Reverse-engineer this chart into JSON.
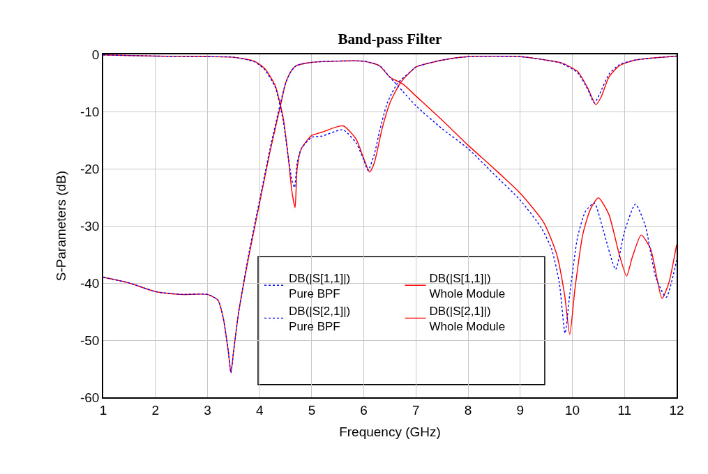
{
  "chart_data": {
    "type": "line",
    "title": "Band-pass Filter",
    "xlabel": "Frequency (GHz)",
    "ylabel": "S-Parameters (dB)",
    "xlim": [
      1,
      12
    ],
    "xticks": [
      1,
      2,
      3,
      4,
      5,
      6,
      7,
      8,
      9,
      10,
      11,
      12
    ],
    "ylim": [
      -60,
      0
    ],
    "yticks": [
      -60,
      -50,
      -40,
      -30,
      -20,
      -10,
      0
    ],
    "grid": true,
    "legend": "bottom",
    "marker": "none",
    "series": [
      {
        "name": "DB(|S[1,1]|)\nPure BPF",
        "color": "#0000ff",
        "line_style": "dotted",
        "x": [
          1,
          2,
          3,
          3.5,
          3.9,
          4.1,
          4.3,
          4.45,
          4.55,
          4.62,
          4.67,
          4.72,
          4.8,
          5.0,
          5.2,
          5.6,
          5.85,
          6.0,
          6.08,
          6.2,
          6.3,
          6.45,
          6.65,
          6.9,
          7.0,
          7.5,
          8,
          9,
          9.5,
          9.8,
          10.1,
          10.3,
          10.42,
          10.52,
          10.7,
          10.9,
          11.2,
          12
        ],
        "values": [
          -0.1,
          -0.3,
          -0.4,
          -0.5,
          -1.3,
          -2.7,
          -5.8,
          -11.5,
          -18,
          -22,
          -23.3,
          -19,
          -16.5,
          -14.5,
          -14.3,
          -13.2,
          -15.5,
          -18.5,
          -20.3,
          -17.5,
          -13.5,
          -8.5,
          -5,
          -3,
          -2.2,
          -1,
          -0.4,
          -0.4,
          -1,
          -1.6,
          -3.2,
          -6.2,
          -8.5,
          -7,
          -3.5,
          -1.8,
          -1,
          -0.3
        ]
      },
      {
        "name": "DB(|S[1,1]|)\nWhole Module",
        "color": "#ff0000",
        "line_style": "solid",
        "x": [
          1,
          2,
          3,
          3.5,
          3.9,
          4.1,
          4.3,
          4.45,
          4.55,
          4.62,
          4.68,
          4.72,
          4.8,
          5.0,
          5.2,
          5.6,
          5.85,
          6.0,
          6.11,
          6.2,
          6.35,
          6.5,
          6.7,
          6.9,
          7.0,
          7.5,
          8,
          9,
          9.5,
          9.8,
          10.1,
          10.3,
          10.45,
          10.55,
          10.7,
          10.9,
          11.2,
          12
        ],
        "values": [
          -0.1,
          -0.3,
          -0.4,
          -0.5,
          -1.2,
          -2.5,
          -5.5,
          -11,
          -18,
          -24,
          -26.8,
          -20,
          -16.5,
          -14.2,
          -13.6,
          -12.5,
          -14.8,
          -18.3,
          -20.6,
          -19,
          -13,
          -8.5,
          -5,
          -3,
          -2.2,
          -1,
          -0.4,
          -0.4,
          -1,
          -1.5,
          -3,
          -6,
          -8.8,
          -7.5,
          -4,
          -2,
          -1,
          -0.3
        ]
      },
      {
        "name": "DB(|S[2,1]|)\nPure BPF",
        "color": "#0000ff",
        "line_style": "dotted",
        "x": [
          1,
          1.5,
          2,
          2.5,
          3.0,
          3.2,
          3.3,
          3.4,
          3.45,
          3.5,
          3.6,
          3.8,
          4.0,
          4.2,
          4.4,
          4.5,
          4.6,
          4.7,
          5,
          6,
          6.3,
          6.5,
          6.75,
          7,
          7.5,
          8,
          8.5,
          9,
          9.4,
          9.6,
          9.75,
          9.86,
          9.95,
          10.1,
          10.25,
          10.42,
          10.6,
          10.83,
          11.0,
          11.21,
          11.4,
          11.6,
          11.8,
          12
        ],
        "values": [
          -39,
          -40,
          -41.5,
          -42,
          -42,
          -43,
          -46,
          -52,
          -55.7,
          -52,
          -45,
          -34.5,
          -25.5,
          -16.5,
          -8.5,
          -5,
          -3,
          -2,
          -1.4,
          -1.2,
          -2,
          -4,
          -6.5,
          -9,
          -13,
          -16.5,
          -21,
          -25.5,
          -30.3,
          -34,
          -40,
          -48.8,
          -42,
          -32,
          -27.5,
          -26,
          -31,
          -37.6,
          -31,
          -26.2,
          -30,
          -39,
          -42.5,
          -36
        ]
      },
      {
        "name": "DB(|S[2,1]|)\nWhole Module",
        "color": "#ff0000",
        "line_style": "solid",
        "x": [
          1,
          1.5,
          2,
          2.5,
          3.0,
          3.2,
          3.3,
          3.4,
          3.45,
          3.5,
          3.6,
          3.8,
          4.0,
          4.2,
          4.4,
          4.5,
          4.6,
          4.7,
          5,
          6,
          6.3,
          6.5,
          6.75,
          7,
          7.5,
          8,
          8.5,
          9,
          9.45,
          9.7,
          9.85,
          9.95,
          10.05,
          10.2,
          10.35,
          10.5,
          10.7,
          10.9,
          11.04,
          11.15,
          11.32,
          11.5,
          11.72,
          11.85,
          12
        ],
        "values": [
          -39,
          -40,
          -41.5,
          -42,
          -42,
          -43,
          -46,
          -52,
          -55.7,
          -52,
          -45,
          -35,
          -26,
          -17,
          -9,
          -5,
          -3,
          -2,
          -1.4,
          -1.2,
          -2,
          -4,
          -5.2,
          -7.3,
          -11.5,
          -15.9,
          -20,
          -24.3,
          -29.4,
          -35,
          -42,
          -49,
          -41,
          -31.5,
          -27,
          -25.1,
          -28,
          -35,
          -38.8,
          -35.5,
          -31.6,
          -34,
          -42.7,
          -40,
          -33.3
        ]
      }
    ]
  }
}
